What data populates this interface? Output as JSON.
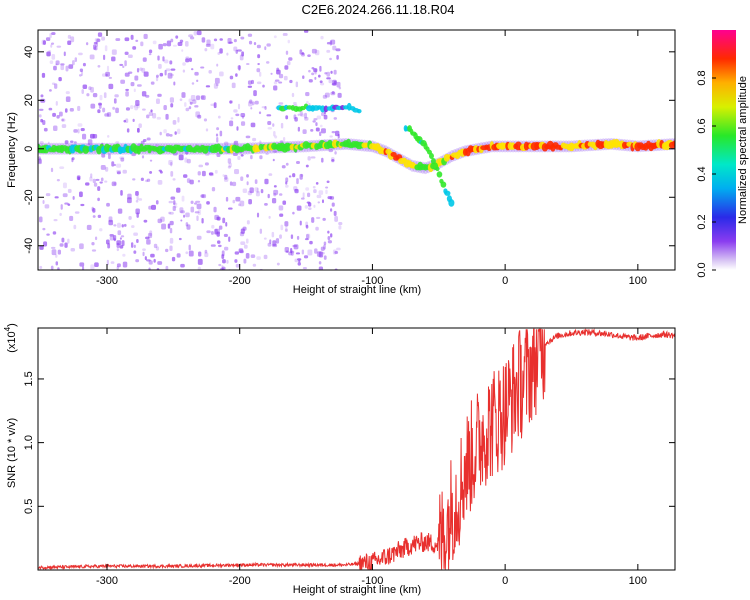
{
  "title": "C2E6.2024.266.11.18.R04",
  "colors": {
    "snr_line": "#e8302e",
    "ridge": [
      "#7b2be2",
      "#00c8e8",
      "#32e82a",
      "#ffe400",
      "#ff2a00"
    ],
    "noise": "#8a3cf0"
  },
  "chart_data": [
    {
      "type": "heatmap",
      "xlabel": "Height of straight line (km)",
      "ylabel": "Frequency (Hz)",
      "xlim": [
        -352,
        128
      ],
      "ylim": [
        -50,
        49
      ],
      "xticks": [
        -300,
        -200,
        -100,
        0,
        100
      ],
      "xtick_labels": [
        "-300",
        "-200",
        "-100",
        "0",
        "100"
      ],
      "yticks": [
        -40,
        -20,
        0,
        20,
        40
      ],
      "ytick_labels": [
        "-40",
        "-20",
        "0",
        "20",
        "40"
      ],
      "colorbar": {
        "label": "Normalized spectral amplitude",
        "range": [
          0,
          1
        ],
        "ticks": [
          0.0,
          0.2,
          0.4,
          0.6,
          0.8
        ],
        "tick_labels": [
          "0.0",
          "0.2",
          "0.4",
          "0.6",
          "0.8"
        ]
      },
      "noise_region_x": [
        -352,
        -125
      ],
      "ridge": {
        "x": [
          -352,
          -300,
          -250,
          -200,
          -150,
          -120,
          -100,
          -90,
          -80,
          -70,
          -60,
          -50,
          -40,
          -30,
          -20,
          -10,
          0,
          20,
          50,
          80,
          100,
          128
        ],
        "y": [
          0,
          0,
          0,
          0,
          1,
          2,
          1,
          -1,
          -4,
          -7,
          -8,
          -6,
          -3,
          -1,
          0,
          1,
          1,
          1,
          1,
          2,
          1,
          2
        ],
        "amplitude": [
          0.4,
          0.45,
          0.45,
          0.5,
          0.55,
          0.6,
          0.7,
          0.8,
          0.85,
          0.7,
          0.6,
          0.7,
          0.75,
          0.8,
          0.9,
          0.95,
          0.95,
          0.95,
          0.9,
          0.85,
          0.95,
          0.9
        ]
      },
      "side_band": {
        "x": [
          -170,
          -160,
          -150,
          -140,
          -130,
          -120,
          -110
        ],
        "y": [
          17,
          17,
          17,
          17,
          17,
          17,
          16
        ],
        "amplitude": [
          0.3,
          0.45,
          0.4,
          0.25,
          0.2,
          0.2,
          0.15
        ]
      },
      "branch": {
        "x": [
          -75,
          -70,
          -65,
          -60,
          -55,
          -50,
          -45,
          -40
        ],
        "y": [
          9,
          7,
          4,
          1,
          -4,
          -10,
          -17,
          -23
        ],
        "amplitude": [
          0.35,
          0.4,
          0.45,
          0.5,
          0.45,
          0.4,
          0.35,
          0.25
        ]
      }
    },
    {
      "type": "line",
      "xlabel": "Height of straight line (km)",
      "ylabel": "SNR (10 * v/v)",
      "y_scale_label": "(x10",
      "y_scale_exponent": "4",
      "xlim": [
        -352,
        128
      ],
      "ylim": [
        0,
        1.9
      ],
      "xticks": [
        -300,
        -200,
        -100,
        0,
        100
      ],
      "xtick_labels": [
        "-300",
        "-200",
        "-100",
        "0",
        "100"
      ],
      "yticks": [
        0.5,
        1.0,
        1.5
      ],
      "ytick_labels": [
        "0.5",
        "1.0",
        "1.5"
      ],
      "series": [
        {
          "x": [
            -352,
            -300,
            -250,
            -200,
            -150,
            -120,
            -110,
            -100,
            -90,
            -80,
            -70,
            -60,
            -50,
            -45,
            -40,
            -35,
            -30,
            -25,
            -20,
            -15,
            -10,
            -5,
            0,
            5,
            10,
            15,
            20,
            25,
            30,
            40,
            50,
            60,
            70,
            80,
            90,
            100,
            110,
            120,
            128
          ],
          "y": [
            0.02,
            0.03,
            0.03,
            0.04,
            0.04,
            0.04,
            0.05,
            0.06,
            0.1,
            0.15,
            0.2,
            0.22,
            0.2,
            0.3,
            0.5,
            0.6,
            0.8,
            0.9,
            1.0,
            1.1,
            1.15,
            1.2,
            1.25,
            1.35,
            1.45,
            1.5,
            1.6,
            1.7,
            1.78,
            1.84,
            1.86,
            1.87,
            1.86,
            1.85,
            1.83,
            1.82,
            1.84,
            1.85,
            1.84
          ]
        }
      ]
    }
  ]
}
